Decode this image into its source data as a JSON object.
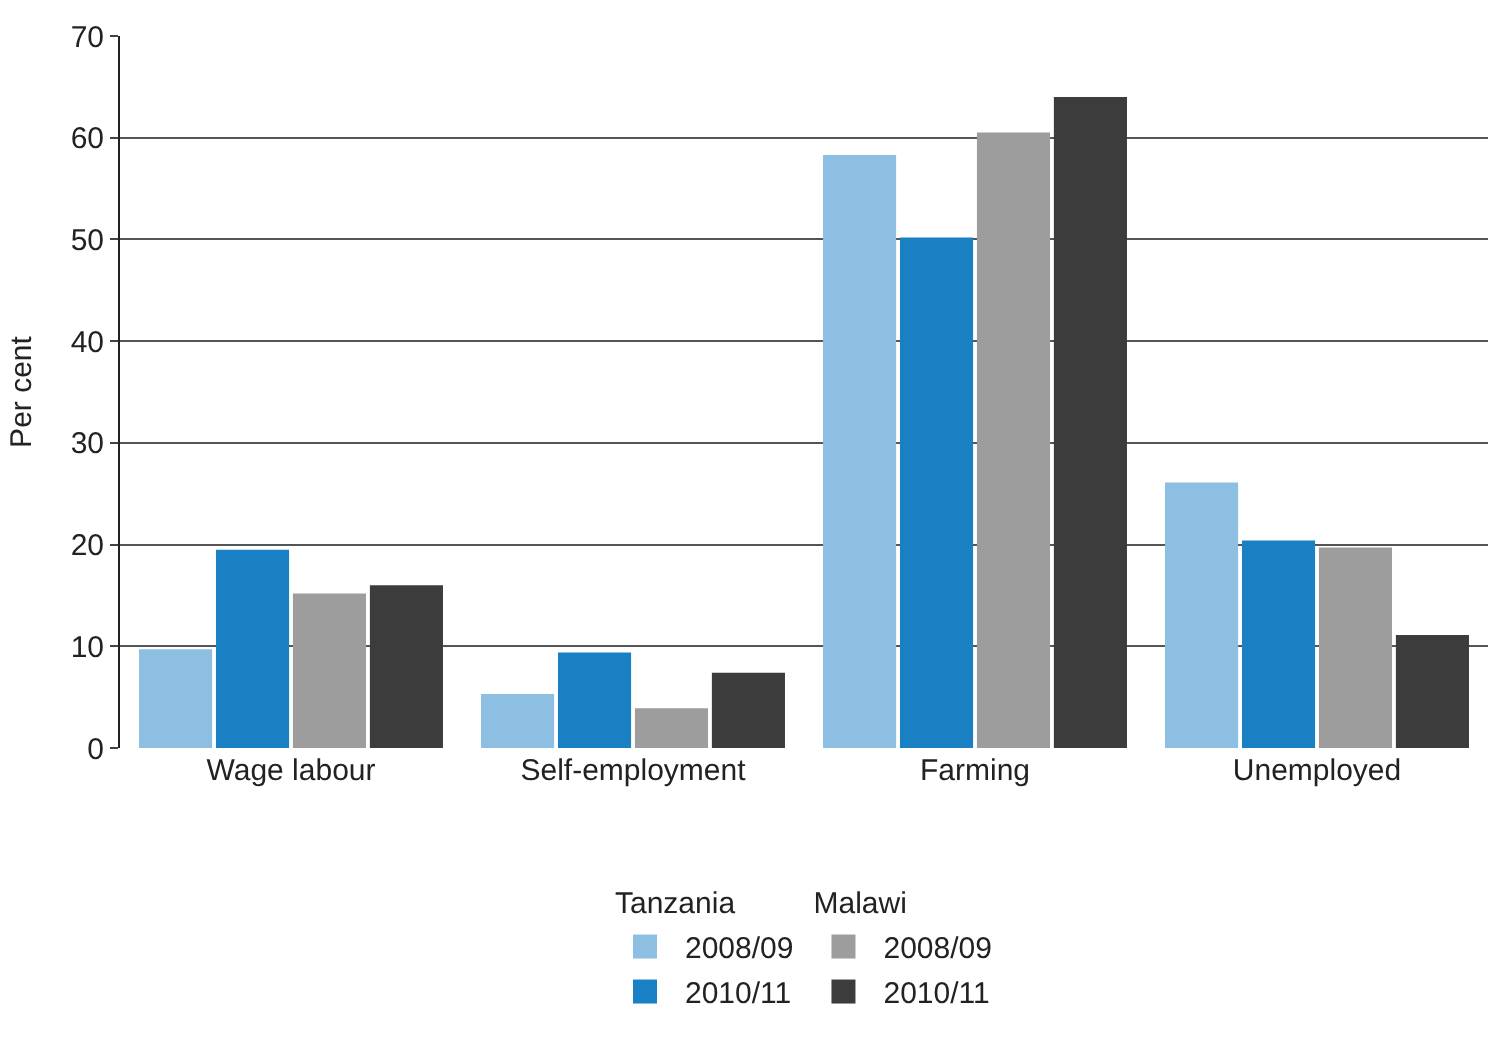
{
  "chart_data": {
    "type": "bar",
    "ylabel": "Per cent",
    "categories": [
      "Wage labour",
      "Self-employment",
      "Farming",
      "Unemployed"
    ],
    "series": [
      {
        "name": "2008/09",
        "color": "#8dbfe2",
        "values": [
          9.7,
          5.3,
          58.3,
          26.1
        ]
      },
      {
        "name": "2010/11",
        "color": "#1a80c4",
        "values": [
          19.5,
          9.4,
          50.2,
          20.4
        ]
      },
      {
        "name": "2008/09",
        "color": "#9d9d9d",
        "values": [
          15.2,
          3.9,
          60.5,
          19.7
        ]
      },
      {
        "name": "2010/11",
        "color": "#3c3c3c",
        "values": [
          16.0,
          7.4,
          64.0,
          11.1
        ]
      }
    ],
    "annotations": [
      "Tanzania",
      "Malawi"
    ],
    "ylim": [
      0,
      70
    ],
    "yticks": [
      0,
      10,
      20,
      30,
      40,
      50,
      60,
      70
    ],
    "grid": "y",
    "legend": "bottom"
  }
}
